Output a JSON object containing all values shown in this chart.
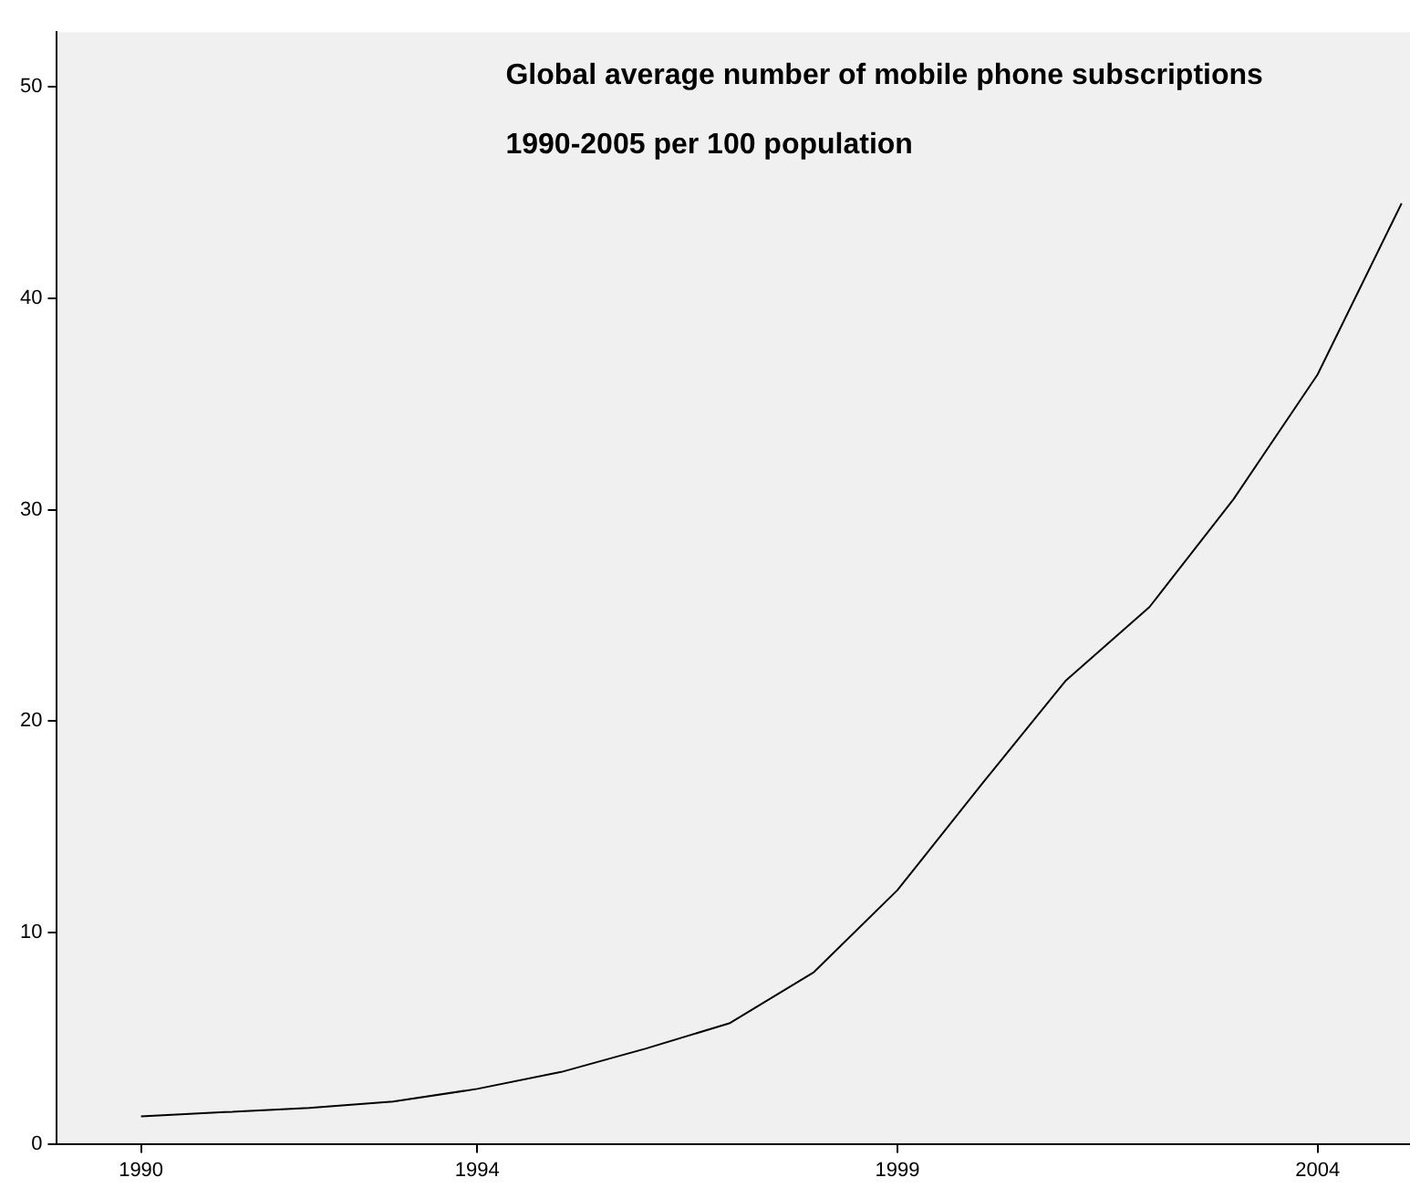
{
  "chart_data": {
    "type": "line",
    "title": "Global average number of mobile phone subscriptions 1990-2005 per 100 population",
    "x": [
      1990,
      1991,
      1992,
      1993,
      1994,
      1995,
      1996,
      1997,
      1998,
      1999,
      2000,
      2001,
      2002,
      2003,
      2004,
      2005
    ],
    "series": [
      {
        "color": "#000000",
        "values": [
          1.3,
          1.5,
          1.7,
          2.0,
          2.6,
          3.4,
          4.5,
          5.7,
          8.1,
          12.0,
          17.0,
          21.9,
          25.4,
          30.5,
          36.4,
          44.5
        ]
      }
    ],
    "xlim": [
      1989,
      2005.1
    ],
    "xticks": [
      1990,
      1994,
      1999,
      2004
    ],
    "ylim": [
      0,
      52.6
    ],
    "yticks": [
      0,
      10,
      20,
      30,
      40,
      50
    ],
    "grid": false,
    "legend": false,
    "marker": "none",
    "line_style": "solid"
  }
}
